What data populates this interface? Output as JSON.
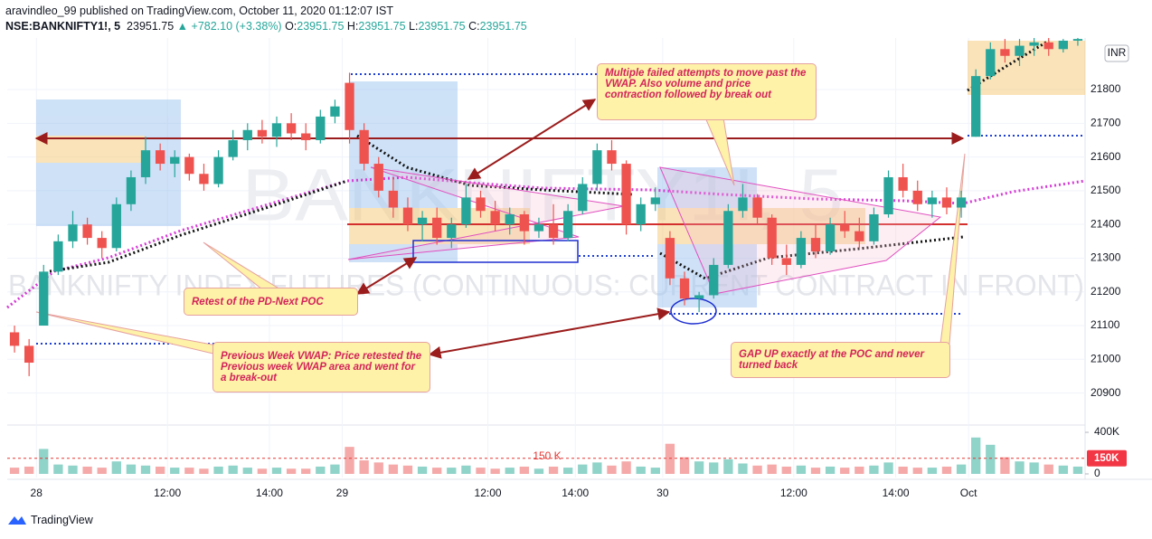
{
  "header": {
    "publisher": "aravindleo_99 published on TradingView.com, October 11, 2020 01:12:07 IST",
    "symbol": "NSE:BANKNIFTY1!, 5",
    "last": "23951.75",
    "change": "▲ +782.10 (+3.38%)",
    "ohlc": [
      {
        "label": "O:",
        "value": "23951.75"
      },
      {
        "label": "H:",
        "value": "23951.75"
      },
      {
        "label": "L:",
        "value": "23951.75"
      },
      {
        "label": "C:",
        "value": "23951.75"
      }
    ]
  },
  "chart_data": {
    "type": "candlestick",
    "watermark": "BANKNIFTY1!, 5",
    "description": "BANKNIFTY INDEX FUTURES (CONTINUOUS: CURRENT CONTRACT IN FRONT)",
    "currency": "INR",
    "up_color": "#26a69a",
    "down_color": "#ef5350",
    "grid": true,
    "open": [
      21080,
      21040,
      21100,
      21260,
      21350,
      21400,
      21360,
      21330,
      21460,
      21540,
      21620,
      21580,
      21600,
      21550,
      21520,
      21600,
      21650,
      21680,
      21660,
      21700,
      21670,
      21650,
      21720,
      21820,
      21680,
      21580,
      21500,
      21450,
      21400,
      21420,
      21360,
      21400,
      21480,
      21440,
      21400,
      21430,
      21380,
      21400,
      21360,
      21440,
      21520,
      21620,
      21580,
      21400,
      21460,
      21360,
      21240,
      21180,
      21190,
      21280,
      21440,
      21480,
      21420,
      21300,
      21280,
      21360,
      21320,
      21400,
      21380,
      21350,
      21430,
      21540,
      21500,
      21460,
      21480,
      21450,
      21660,
      21840,
      21920,
      21900,
      21930,
      21940,
      21920,
      21945
    ],
    "high": [
      21100,
      21060,
      21280,
      21370,
      21440,
      21420,
      21380,
      21480,
      21560,
      21660,
      21640,
      21620,
      21610,
      21580,
      21620,
      21680,
      21700,
      21710,
      21720,
      21730,
      21700,
      21740,
      21770,
      21850,
      21700,
      21600,
      21540,
      21480,
      21440,
      21450,
      21420,
      21520,
      21500,
      21470,
      21450,
      21440,
      21420,
      21460,
      21460,
      21540,
      21640,
      21650,
      21590,
      21480,
      21510,
      21380,
      21260,
      21200,
      21300,
      21460,
      21520,
      21490,
      21430,
      21340,
      21380,
      21400,
      21420,
      21440,
      21420,
      21450,
      21560,
      21580,
      21530,
      21500,
      21510,
      21500,
      21860,
      21940,
      21950,
      21950,
      21955,
      21955,
      21950,
      21955
    ],
    "low": [
      21020,
      20950,
      21100,
      21250,
      21330,
      21340,
      21300,
      21320,
      21440,
      21520,
      21560,
      21540,
      21530,
      21500,
      21510,
      21590,
      21620,
      21640,
      21630,
      21650,
      21620,
      21640,
      21700,
      21640,
      21560,
      21480,
      21420,
      21380,
      21350,
      21340,
      21330,
      21390,
      21420,
      21380,
      21370,
      21340,
      21360,
      21340,
      21350,
      21430,
      21500,
      21560,
      21370,
      21380,
      21440,
      21220,
      21160,
      21140,
      21180,
      21270,
      21420,
      21400,
      21280,
      21250,
      21270,
      21300,
      21310,
      21360,
      21330,
      21340,
      21420,
      21480,
      21440,
      21420,
      21430,
      21420,
      21660,
      21830,
      21880,
      21870,
      21900,
      21900,
      21910,
      21930
    ],
    "close": [
      21040,
      20990,
      21260,
      21350,
      21400,
      21360,
      21330,
      21460,
      21540,
      21620,
      21580,
      21600,
      21550,
      21520,
      21600,
      21650,
      21680,
      21660,
      21700,
      21670,
      21650,
      21720,
      21750,
      21680,
      21580,
      21500,
      21450,
      21400,
      21420,
      21360,
      21400,
      21480,
      21440,
      21400,
      21430,
      21380,
      21400,
      21360,
      21440,
      21520,
      21620,
      21580,
      21400,
      21460,
      21480,
      21240,
      21180,
      21190,
      21280,
      21440,
      21480,
      21420,
      21300,
      21280,
      21360,
      21320,
      21400,
      21380,
      21350,
      21430,
      21540,
      21500,
      21460,
      21480,
      21450,
      21480,
      21840,
      21920,
      21900,
      21930,
      21940,
      21920,
      21945,
      21950
    ],
    "ylim": [
      20805,
      21953
    ],
    "yticks": [
      20900,
      21000,
      21100,
      21200,
      21300,
      21400,
      21500,
      21600,
      21700,
      21800
    ],
    "xticks": [
      {
        "value": 2,
        "label": "28"
      },
      {
        "value": 11,
        "label": "12:00"
      },
      {
        "value": 18,
        "label": "14:00"
      },
      {
        "value": 23,
        "label": "29"
      },
      {
        "value": 33,
        "label": "12:00"
      },
      {
        "value": 39,
        "label": "14:00"
      },
      {
        "value": 45,
        "label": "30"
      },
      {
        "value": 54,
        "label": "12:00"
      },
      {
        "value": 61,
        "label": "14:00"
      },
      {
        "value": 66,
        "label": "Oct"
      }
    ],
    "volume": {
      "values": [
        60000,
        70000,
        240000,
        90000,
        80000,
        70000,
        60000,
        120000,
        90000,
        80000,
        70000,
        60000,
        60000,
        50000,
        70000,
        80000,
        60000,
        50000,
        60000,
        50000,
        50000,
        70000,
        90000,
        260000,
        130000,
        110000,
        90000,
        80000,
        70000,
        60000,
        60000,
        80000,
        60000,
        50000,
        60000,
        70000,
        50000,
        70000,
        60000,
        90000,
        110000,
        80000,
        120000,
        70000,
        60000,
        290000,
        160000,
        120000,
        110000,
        140000,
        100000,
        80000,
        90000,
        70000,
        80000,
        60000,
        70000,
        60000,
        70000,
        80000,
        110000,
        70000,
        60000,
        60000,
        70000,
        90000,
        350000,
        280000,
        160000,
        120000,
        110000,
        90000,
        80000,
        70000
      ],
      "up_color": "#8fd3c9",
      "down_color": "#f5a9a9",
      "ylim": [
        0,
        470000
      ],
      "yticks": [
        {
          "value": 0,
          "label": "0"
        },
        {
          "value": 400000,
          "label": "400K"
        }
      ],
      "marker": {
        "value": 150000,
        "label": "150K"
      },
      "line_label": "150 K"
    },
    "annotations": [
      "Multiple failed attempts to move past the VWAP. Also volume and price contraction followed by break out",
      "Retest of the PD-Next POC",
      "Previous Week VWAP: Price retested the Previous week VWAP area and went for a break-out",
      "GAP UP exactly at the POC and never turned back"
    ]
  },
  "footer": {
    "brand": "TradingView"
  }
}
